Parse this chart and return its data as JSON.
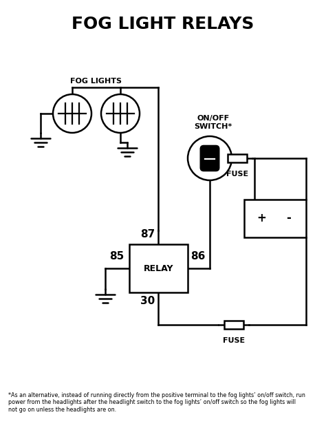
{
  "title": "FOG LIGHT RELAYS",
  "title_fontsize": 18,
  "bg_color": "#ffffff",
  "line_color": "#000000",
  "line_width": 1.8,
  "fig_width": 4.74,
  "fig_height": 6.22,
  "footer_text": "*As an alternative, instead of running directly from the positive terminal to the fog lights’ on/off switch, run\npower from the headlights after the headlight switch to the fog lights’ on/off switch so the fog lights will\nnot go on unless the headlights are on.",
  "fog_lights_label": "FOG LIGHTS",
  "on_off_label": "ON/OFF\nSWITCH*",
  "fuse_label_top": "FUSE",
  "fuse_label_bottom": "FUSE",
  "relay_label": "RELAY",
  "terminal_87": "87",
  "terminal_86": "86",
  "terminal_85": "85",
  "terminal_30": "30",
  "battery_plus": "+",
  "battery_minus": "-"
}
